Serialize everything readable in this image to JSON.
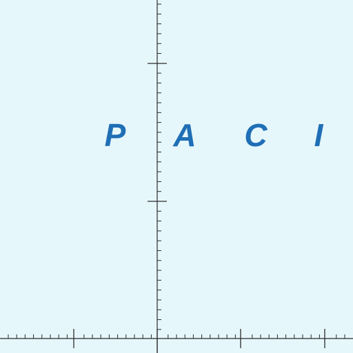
{
  "map": {
    "background_color": "#e6f7fb",
    "water_label": {
      "letters": [
        "P",
        "A",
        "C",
        "I"
      ],
      "color": "#1f6fb6"
    },
    "grid_line_color": "#2a2a2a"
  }
}
